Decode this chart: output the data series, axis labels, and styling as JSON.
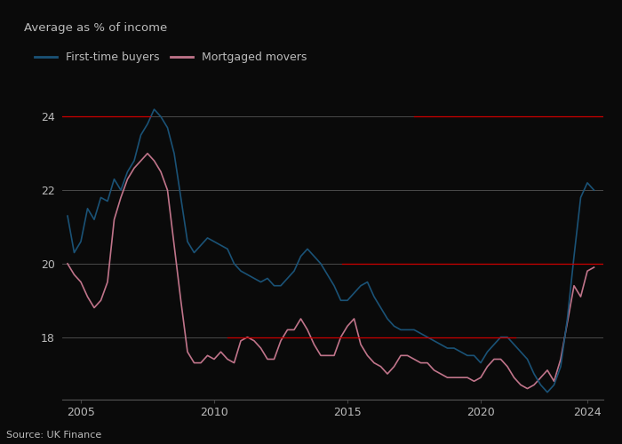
{
  "title": "Average as % of income",
  "source": "Source: UK Finance",
  "legend": [
    "First-time buyers",
    "Mortgaged movers"
  ],
  "line_colors": [
    "#1a5276",
    "#c0748a"
  ],
  "ylim": [
    16.3,
    25.0
  ],
  "yticks": [
    18,
    20,
    22,
    24
  ],
  "xlim_start": 2004.3,
  "xlim_end": 2024.6,
  "xticks": [
    2005,
    2010,
    2015,
    2020,
    2024
  ],
  "background_color": "#0a0a0a",
  "text_color": "#bbbbbb",
  "grid_color": "#ffffff",
  "red_line_color": "#cc0000",
  "red_lines": [
    {
      "y": 24,
      "x_start": 2004.3,
      "x_end": 2007.6
    },
    {
      "y": 24,
      "x_start": 2017.5,
      "x_end": 2024.6
    },
    {
      "y": 20,
      "x_start": 2014.8,
      "x_end": 2024.6
    },
    {
      "y": 18,
      "x_start": 2010.5,
      "x_end": 2021.3
    }
  ],
  "ftb_x": [
    2004.5,
    2004.75,
    2005.0,
    2005.25,
    2005.5,
    2005.75,
    2006.0,
    2006.25,
    2006.5,
    2006.75,
    2007.0,
    2007.25,
    2007.5,
    2007.75,
    2008.0,
    2008.25,
    2008.5,
    2008.75,
    2009.0,
    2009.25,
    2009.5,
    2009.75,
    2010.0,
    2010.25,
    2010.5,
    2010.75,
    2011.0,
    2011.25,
    2011.5,
    2011.75,
    2012.0,
    2012.25,
    2012.5,
    2012.75,
    2013.0,
    2013.25,
    2013.5,
    2013.75,
    2014.0,
    2014.25,
    2014.5,
    2014.75,
    2015.0,
    2015.25,
    2015.5,
    2015.75,
    2016.0,
    2016.25,
    2016.5,
    2016.75,
    2017.0,
    2017.25,
    2017.5,
    2017.75,
    2018.0,
    2018.25,
    2018.5,
    2018.75,
    2019.0,
    2019.25,
    2019.5,
    2019.75,
    2020.0,
    2020.25,
    2020.5,
    2020.75,
    2021.0,
    2021.25,
    2021.5,
    2021.75,
    2022.0,
    2022.25,
    2022.5,
    2022.75,
    2023.0,
    2023.25,
    2023.5,
    2023.75,
    2024.0,
    2024.25
  ],
  "ftb_y": [
    21.3,
    20.3,
    20.6,
    21.5,
    21.2,
    21.8,
    21.7,
    22.3,
    22.0,
    22.5,
    22.8,
    23.5,
    23.8,
    24.2,
    24.0,
    23.7,
    23.0,
    21.8,
    20.6,
    20.3,
    20.5,
    20.7,
    20.6,
    20.5,
    20.4,
    20.0,
    19.8,
    19.7,
    19.6,
    19.5,
    19.6,
    19.4,
    19.4,
    19.6,
    19.8,
    20.2,
    20.4,
    20.2,
    20.0,
    19.7,
    19.4,
    19.0,
    19.0,
    19.2,
    19.4,
    19.5,
    19.1,
    18.8,
    18.5,
    18.3,
    18.2,
    18.2,
    18.2,
    18.1,
    18.0,
    17.9,
    17.8,
    17.7,
    17.7,
    17.6,
    17.5,
    17.5,
    17.3,
    17.6,
    17.8,
    18.0,
    18.0,
    17.8,
    17.6,
    17.4,
    17.0,
    16.7,
    16.5,
    16.7,
    17.2,
    18.5,
    20.2,
    21.8,
    22.2,
    22.0
  ],
  "mm_x": [
    2004.5,
    2004.75,
    2005.0,
    2005.25,
    2005.5,
    2005.75,
    2006.0,
    2006.25,
    2006.5,
    2006.75,
    2007.0,
    2007.25,
    2007.5,
    2007.75,
    2008.0,
    2008.25,
    2008.5,
    2008.75,
    2009.0,
    2009.25,
    2009.5,
    2009.75,
    2010.0,
    2010.25,
    2010.5,
    2010.75,
    2011.0,
    2011.25,
    2011.5,
    2011.75,
    2012.0,
    2012.25,
    2012.5,
    2012.75,
    2013.0,
    2013.25,
    2013.5,
    2013.75,
    2014.0,
    2014.25,
    2014.5,
    2014.75,
    2015.0,
    2015.25,
    2015.5,
    2015.75,
    2016.0,
    2016.25,
    2016.5,
    2016.75,
    2017.0,
    2017.25,
    2017.5,
    2017.75,
    2018.0,
    2018.25,
    2018.5,
    2018.75,
    2019.0,
    2019.25,
    2019.5,
    2019.75,
    2020.0,
    2020.25,
    2020.5,
    2020.75,
    2021.0,
    2021.25,
    2021.5,
    2021.75,
    2022.0,
    2022.25,
    2022.5,
    2022.75,
    2023.0,
    2023.25,
    2023.5,
    2023.75,
    2024.0,
    2024.25
  ],
  "mm_y": [
    20.0,
    19.7,
    19.5,
    19.1,
    18.8,
    19.0,
    19.5,
    21.2,
    21.8,
    22.3,
    22.6,
    22.8,
    23.0,
    22.8,
    22.5,
    22.0,
    20.5,
    19.0,
    17.6,
    17.3,
    17.3,
    17.5,
    17.4,
    17.6,
    17.4,
    17.3,
    17.9,
    18.0,
    17.9,
    17.7,
    17.4,
    17.4,
    17.9,
    18.2,
    18.2,
    18.5,
    18.2,
    17.8,
    17.5,
    17.5,
    17.5,
    18.0,
    18.3,
    18.5,
    17.8,
    17.5,
    17.3,
    17.2,
    17.0,
    17.2,
    17.5,
    17.5,
    17.4,
    17.3,
    17.3,
    17.1,
    17.0,
    16.9,
    16.9,
    16.9,
    16.9,
    16.8,
    16.9,
    17.2,
    17.4,
    17.4,
    17.2,
    16.9,
    16.7,
    16.6,
    16.7,
    16.9,
    17.1,
    16.8,
    17.4,
    18.4,
    19.4,
    19.1,
    19.8,
    19.9
  ]
}
